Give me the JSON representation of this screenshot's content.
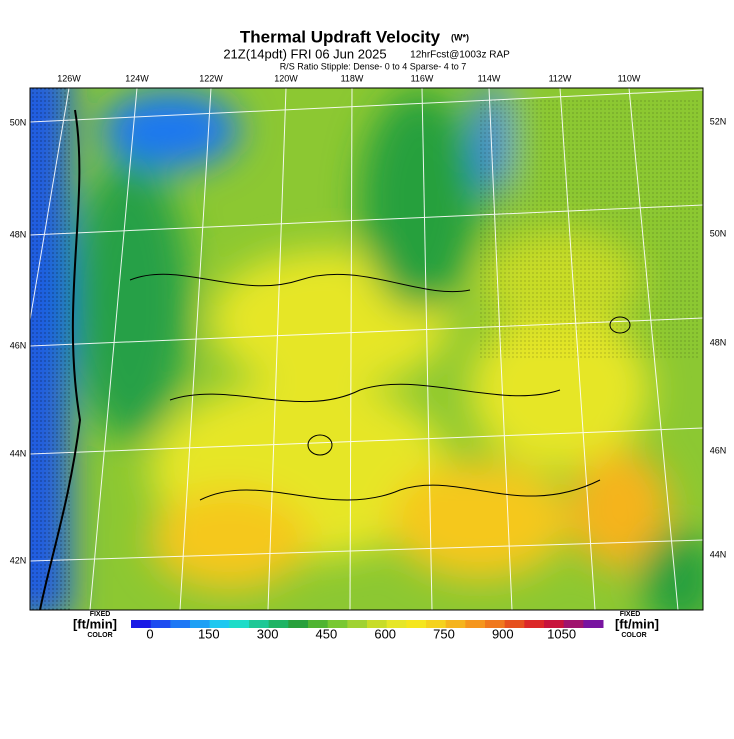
{
  "header": {
    "title": "Thermal Updraft Velocity",
    "unit": "(W*)",
    "subtitle": "21Z(14pdt) FRI 06 Jun 2025",
    "forecast": "12hrFcst@1003z RAP",
    "stipple": "R/S Ratio Stipple:  Dense- 0 to 4  Sparse- 4 to 7"
  },
  "map": {
    "lon_labels": [
      "126W",
      "124W",
      "122W",
      "120W",
      "118W",
      "116W",
      "114W",
      "112W",
      "110W"
    ],
    "left_lat_labels": [
      "50N",
      "48N",
      "46N",
      "44N",
      "42N"
    ],
    "right_lat_labels": [
      "52N",
      "50N",
      "48N",
      "46N",
      "44N"
    ]
  },
  "colorbar": {
    "unit": "[ft/min]",
    "fixed": "FIXED",
    "color_word": "COLOR",
    "labels": [
      "0",
      "150",
      "300",
      "450",
      "600",
      "750",
      "900",
      "1050"
    ],
    "colors": [
      "#1a1ae6",
      "#1e4cf0",
      "#1e78f5",
      "#1ea0f5",
      "#1ec8f0",
      "#1edcc8",
      "#1ec896",
      "#1eb464",
      "#28a03c",
      "#50b432",
      "#78c832",
      "#a0d232",
      "#c8dc28",
      "#e6e628",
      "#f5e61e",
      "#f5d21e",
      "#f5b41e",
      "#f5961e",
      "#f0781e",
      "#e6501e",
      "#dc2828",
      "#c8143c",
      "#a0146e",
      "#7814a0"
    ]
  }
}
